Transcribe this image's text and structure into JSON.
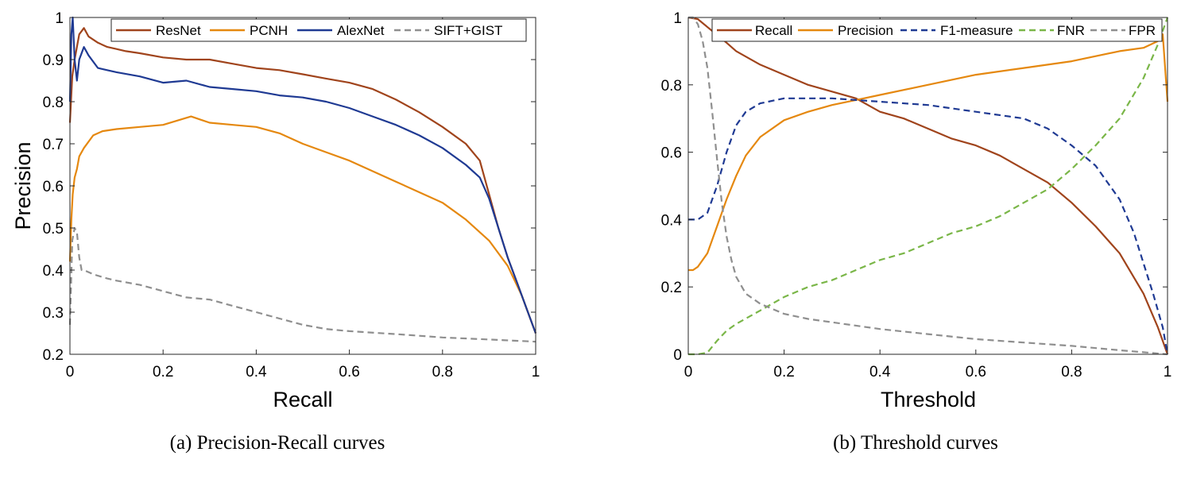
{
  "colors": {
    "brown": "#a0441c",
    "orange": "#e5880f",
    "navy": "#1f3a93",
    "gray": "#8f8f8f",
    "green": "#7ab648"
  },
  "captions": {
    "a": "(a)  Precision-Recall curves",
    "b": "(b)  Threshold curves"
  },
  "chart_data": [
    {
      "type": "line",
      "xlabel": "Recall",
      "ylabel": "Precision",
      "xlim": [
        0,
        1
      ],
      "ylim": [
        0.2,
        1
      ],
      "xticks": [
        0,
        0.2,
        0.4,
        0.6,
        0.8,
        1
      ],
      "xtick_labels": [
        "0",
        "0.2",
        "0.4",
        "0.6",
        "0.8",
        "1"
      ],
      "yticks": [
        0.2,
        0.3,
        0.4,
        0.5,
        0.6,
        0.7,
        0.8,
        0.9,
        1
      ],
      "ytick_labels": [
        "0.2",
        "0.3",
        "0.4",
        "0.5",
        "0.6",
        "0.7",
        "0.8",
        "0.9",
        "1"
      ],
      "grid": false,
      "legend_position": "top",
      "series": [
        {
          "name": "ResNet",
          "color": "#a0441c",
          "dash": "solid",
          "x": [
            0,
            0.005,
            0.01,
            0.015,
            0.02,
            0.03,
            0.04,
            0.06,
            0.08,
            0.1,
            0.12,
            0.15,
            0.2,
            0.25,
            0.3,
            0.35,
            0.4,
            0.45,
            0.5,
            0.55,
            0.6,
            0.65,
            0.7,
            0.75,
            0.8,
            0.85,
            0.88,
            0.9,
            0.92,
            0.94,
            0.96,
            0.98,
            1
          ],
          "y": [
            0.75,
            0.86,
            0.9,
            0.93,
            0.96,
            0.975,
            0.955,
            0.94,
            0.93,
            0.925,
            0.92,
            0.915,
            0.905,
            0.9,
            0.9,
            0.89,
            0.88,
            0.875,
            0.865,
            0.855,
            0.845,
            0.83,
            0.805,
            0.775,
            0.74,
            0.7,
            0.66,
            0.58,
            0.5,
            0.43,
            0.37,
            0.31,
            0.25
          ]
        },
        {
          "name": "PCNH",
          "color": "#e5880f",
          "dash": "solid",
          "x": [
            0,
            0.003,
            0.006,
            0.01,
            0.015,
            0.02,
            0.03,
            0.05,
            0.07,
            0.1,
            0.15,
            0.2,
            0.26,
            0.3,
            0.35,
            0.4,
            0.45,
            0.5,
            0.55,
            0.6,
            0.65,
            0.7,
            0.75,
            0.8,
            0.85,
            0.9,
            0.94,
            0.97,
            1
          ],
          "y": [
            0.42,
            0.52,
            0.58,
            0.62,
            0.64,
            0.67,
            0.69,
            0.72,
            0.73,
            0.735,
            0.74,
            0.745,
            0.765,
            0.75,
            0.745,
            0.74,
            0.725,
            0.7,
            0.68,
            0.66,
            0.635,
            0.61,
            0.585,
            0.56,
            0.52,
            0.47,
            0.41,
            0.34,
            0.25
          ]
        },
        {
          "name": "AlexNet",
          "color": "#1f3a93",
          "dash": "solid",
          "x": [
            0,
            0.003,
            0.006,
            0.01,
            0.015,
            0.02,
            0.03,
            0.04,
            0.06,
            0.08,
            0.1,
            0.15,
            0.2,
            0.25,
            0.3,
            0.35,
            0.4,
            0.45,
            0.5,
            0.55,
            0.6,
            0.65,
            0.7,
            0.75,
            0.8,
            0.85,
            0.88,
            0.9,
            0.92,
            0.94,
            0.96,
            0.98,
            1
          ],
          "y": [
            0.8,
            0.96,
            1.0,
            0.9,
            0.85,
            0.9,
            0.93,
            0.91,
            0.88,
            0.875,
            0.87,
            0.86,
            0.845,
            0.85,
            0.835,
            0.83,
            0.825,
            0.815,
            0.81,
            0.8,
            0.785,
            0.765,
            0.745,
            0.72,
            0.69,
            0.65,
            0.62,
            0.57,
            0.5,
            0.43,
            0.37,
            0.31,
            0.25
          ]
        },
        {
          "name": "SIFT+GIST",
          "color": "#8f8f8f",
          "dash": "dashed",
          "x": [
            0,
            0.005,
            0.01,
            0.015,
            0.02,
            0.025,
            0.03,
            0.05,
            0.08,
            0.1,
            0.15,
            0.2,
            0.25,
            0.3,
            0.35,
            0.4,
            0.45,
            0.5,
            0.55,
            0.6,
            0.7,
            0.8,
            0.9,
            1
          ],
          "y": [
            0.27,
            0.47,
            0.5,
            0.49,
            0.43,
            0.4,
            0.4,
            0.39,
            0.38,
            0.375,
            0.365,
            0.35,
            0.335,
            0.33,
            0.315,
            0.3,
            0.285,
            0.27,
            0.26,
            0.255,
            0.248,
            0.24,
            0.235,
            0.23
          ]
        }
      ]
    },
    {
      "type": "line",
      "xlabel": "Threshold",
      "ylabel": "",
      "xlim": [
        0,
        1
      ],
      "ylim": [
        0,
        1
      ],
      "xticks": [
        0,
        0.2,
        0.4,
        0.6,
        0.8,
        1
      ],
      "xtick_labels": [
        "0",
        "0.2",
        "0.4",
        "0.6",
        "0.8",
        "1"
      ],
      "yticks": [
        0,
        0.2,
        0.4,
        0.6,
        0.8,
        1
      ],
      "ytick_labels": [
        "0",
        "0.2",
        "0.4",
        "0.6",
        "0.8",
        "1"
      ],
      "grid": false,
      "legend_position": "top",
      "series": [
        {
          "name": "Recall",
          "color": "#a0441c",
          "dash": "solid",
          "x": [
            0,
            0.02,
            0.05,
            0.08,
            0.1,
            0.15,
            0.2,
            0.25,
            0.3,
            0.35,
            0.4,
            0.45,
            0.5,
            0.55,
            0.6,
            0.65,
            0.7,
            0.75,
            0.8,
            0.85,
            0.9,
            0.95,
            0.98,
            1
          ],
          "y": [
            1.0,
            0.995,
            0.96,
            0.925,
            0.9,
            0.86,
            0.83,
            0.8,
            0.78,
            0.76,
            0.72,
            0.7,
            0.67,
            0.64,
            0.62,
            0.59,
            0.55,
            0.51,
            0.45,
            0.38,
            0.3,
            0.18,
            0.08,
            0.0
          ]
        },
        {
          "name": "Precision",
          "color": "#e5880f",
          "dash": "solid",
          "x": [
            0,
            0.01,
            0.02,
            0.04,
            0.06,
            0.08,
            0.1,
            0.12,
            0.15,
            0.2,
            0.25,
            0.3,
            0.35,
            0.4,
            0.5,
            0.6,
            0.7,
            0.8,
            0.9,
            0.95,
            0.98,
            0.99,
            1
          ],
          "y": [
            0.25,
            0.25,
            0.26,
            0.3,
            0.38,
            0.46,
            0.53,
            0.59,
            0.645,
            0.695,
            0.72,
            0.74,
            0.755,
            0.77,
            0.8,
            0.83,
            0.85,
            0.87,
            0.9,
            0.91,
            0.93,
            0.95,
            0.75
          ]
        },
        {
          "name": "F1-measure",
          "color": "#1f3a93",
          "dash": "dashed",
          "x": [
            0,
            0.02,
            0.04,
            0.06,
            0.08,
            0.1,
            0.12,
            0.15,
            0.2,
            0.3,
            0.35,
            0.4,
            0.5,
            0.6,
            0.7,
            0.75,
            0.8,
            0.85,
            0.9,
            0.93,
            0.95,
            0.97,
            0.99,
            1
          ],
          "y": [
            0.4,
            0.4,
            0.42,
            0.5,
            0.6,
            0.68,
            0.72,
            0.745,
            0.76,
            0.76,
            0.755,
            0.75,
            0.74,
            0.72,
            0.7,
            0.67,
            0.62,
            0.56,
            0.46,
            0.36,
            0.27,
            0.18,
            0.08,
            0.0
          ]
        },
        {
          "name": "FNR",
          "color": "#7ab648",
          "dash": "dashed",
          "x": [
            0,
            0.02,
            0.04,
            0.06,
            0.08,
            0.1,
            0.15,
            0.2,
            0.25,
            0.3,
            0.35,
            0.4,
            0.45,
            0.5,
            0.55,
            0.6,
            0.65,
            0.7,
            0.75,
            0.8,
            0.85,
            0.9,
            0.95,
            0.98,
            1
          ],
          "y": [
            0.0,
            0.0,
            0.005,
            0.04,
            0.07,
            0.09,
            0.13,
            0.17,
            0.2,
            0.22,
            0.25,
            0.28,
            0.3,
            0.33,
            0.36,
            0.38,
            0.41,
            0.45,
            0.49,
            0.55,
            0.62,
            0.7,
            0.82,
            0.92,
            1.0
          ]
        },
        {
          "name": "FPR",
          "color": "#8f8f8f",
          "dash": "dashed",
          "x": [
            0,
            0.01,
            0.02,
            0.03,
            0.04,
            0.05,
            0.06,
            0.07,
            0.08,
            0.09,
            0.1,
            0.12,
            0.15,
            0.2,
            0.25,
            0.3,
            0.4,
            0.5,
            0.6,
            0.7,
            0.8,
            0.9,
            1
          ],
          "y": [
            1.0,
            1.0,
            0.98,
            0.93,
            0.85,
            0.72,
            0.58,
            0.45,
            0.35,
            0.28,
            0.23,
            0.18,
            0.15,
            0.12,
            0.105,
            0.095,
            0.075,
            0.06,
            0.045,
            0.035,
            0.025,
            0.012,
            0.0
          ]
        }
      ]
    }
  ]
}
